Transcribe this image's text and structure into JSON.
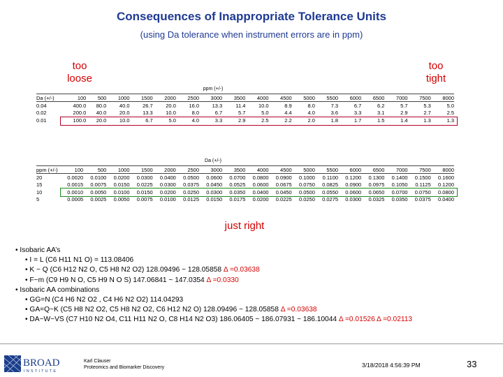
{
  "title": "Consequences of Inappropriate Tolerance Units",
  "subtitle": "(using Da tolerance when instrument errors are in ppm)",
  "callouts": {
    "too_loose": "too\nloose",
    "too_tight": "too\ntight",
    "just_right": "just right"
  },
  "table1": {
    "unit_label": "ppm (+/-)",
    "header": [
      "Da (+/-)",
      "100",
      "500",
      "1000",
      "1500",
      "2000",
      "2500",
      "3000",
      "3500",
      "4000",
      "4500",
      "5000",
      "5500",
      "6000",
      "6500",
      "7000",
      "7500",
      "8000"
    ],
    "rows": [
      [
        "0.04",
        "400.0",
        "80.0",
        "40.0",
        "26.7",
        "20.0",
        "16.0",
        "13.3",
        "11.4",
        "10.0",
        "8.9",
        "8.0",
        "7.3",
        "6.7",
        "6.2",
        "5.7",
        "5.3",
        "5.0"
      ],
      [
        "0.02",
        "200.0",
        "40.0",
        "20.0",
        "13.3",
        "10.0",
        "8.0",
        "6.7",
        "5.7",
        "5.0",
        "4.4",
        "4.0",
        "3.6",
        "3.3",
        "3.1",
        "2.9",
        "2.7",
        "2.5"
      ],
      [
        "0.01",
        "100.0",
        "20.0",
        "10.0",
        "6.7",
        "5.0",
        "4.0",
        "3.3",
        "2.9",
        "2.5",
        "2.2",
        "2.0",
        "1.8",
        "1.7",
        "1.5",
        "1.4",
        "1.3",
        "1.3"
      ]
    ]
  },
  "table2": {
    "unit_label": "Da (+/-)",
    "header": [
      "ppm (+/-)",
      "100",
      "500",
      "1000",
      "1500",
      "2000",
      "2500",
      "3000",
      "3500",
      "4000",
      "4500",
      "5000",
      "5500",
      "6000",
      "6500",
      "7000",
      "7500",
      "8000"
    ],
    "rows": [
      [
        "20",
        "0.0020",
        "0.0100",
        "0.0200",
        "0.0300",
        "0.0400",
        "0.0500",
        "0.0600",
        "0.0700",
        "0.0800",
        "0.0900",
        "0.1000",
        "0.1100",
        "0.1200",
        "0.1300",
        "0.1400",
        "0.1500",
        "0.1600"
      ],
      [
        "15",
        "0.0015",
        "0.0075",
        "0.0150",
        "0.0225",
        "0.0300",
        "0.0375",
        "0.0450",
        "0.0525",
        "0.0600",
        "0.0675",
        "0.0750",
        "0.0825",
        "0.0900",
        "0.0975",
        "0.1050",
        "0.1125",
        "0.1200"
      ],
      [
        "10",
        "0.0010",
        "0.0050",
        "0.0100",
        "0.0150",
        "0.0200",
        "0.0250",
        "0.0300",
        "0.0350",
        "0.0400",
        "0.0450",
        "0.0500",
        "0.0550",
        "0.0600",
        "0.0650",
        "0.0700",
        "0.0750",
        "0.0800"
      ],
      [
        "5",
        "0.0005",
        "0.0025",
        "0.0050",
        "0.0075",
        "0.0100",
        "0.0125",
        "0.0150",
        "0.0175",
        "0.0200",
        "0.0225",
        "0.0250",
        "0.0275",
        "0.0300",
        "0.0325",
        "0.0350",
        "0.0375",
        "0.0400"
      ]
    ]
  },
  "bullets": [
    {
      "level": 1,
      "text": "Isobaric AA’s"
    },
    {
      "level": 2,
      "text": "I = L (C6 H11 N1 O) = 113.08406"
    },
    {
      "level": 2,
      "text": "K ~ Q (C6 H12 N2 O, C5 H8 N2 O2) 128.09496 ~ 128.05858 ",
      "delta": "Δ =0.03638"
    },
    {
      "level": 2,
      "text": "F~m (C9 H9 N O, C5 H9 N O S) 147.06841 ~ 147.0354 ",
      "delta": "Δ =0.0330"
    },
    {
      "level": 1,
      "text": "Isobaric AA combinations"
    },
    {
      "level": 2,
      "text": "GG=N (C4 H6 N2 O2 , C4 H6 N2 O2) 114.04293"
    },
    {
      "level": 2,
      "text": "GA=Q~K (C5 H8 N2 O2, C5 H8 N2 O2, C6 H12 N2 O) 128.09496 ~ 128.05858 ",
      "delta": "Δ =0.03638"
    },
    {
      "level": 2,
      "text": "DA~W~VS (C7 H10 N2 O4, C11 H11 N2 O, C8 H14 N2 O3) 186.06405 ~ 186.07931 ~ 186.10044 ",
      "delta": "Δ =0.01526 Δ =0.02113"
    }
  ],
  "footer": {
    "logo_text": "BROAD",
    "logo_sub": "INSTITUTE",
    "author": "Karl Clauser",
    "department": "Proteomics and Biomarker Discovery",
    "date": "3/18/2018 4:56:39 PM",
    "page": "33"
  },
  "colors": {
    "title": "#1f3a93",
    "highlight_red": "#b0002a",
    "highlight_green": "#1a8a1a",
    "delta": "#d40000",
    "logo": "#1a3e8c"
  }
}
